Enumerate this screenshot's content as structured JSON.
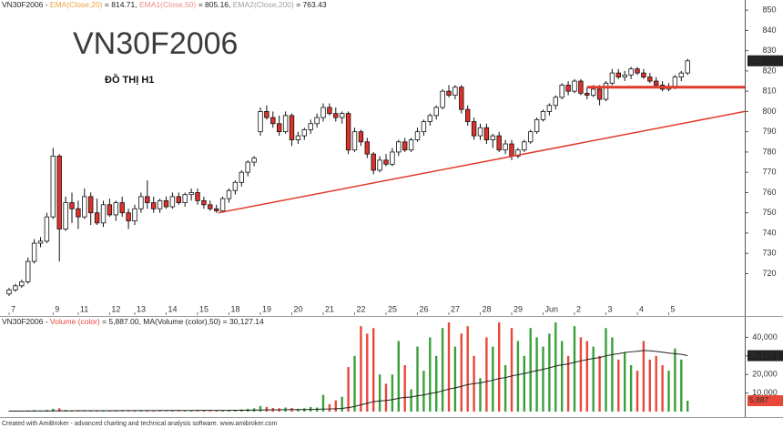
{
  "chart_data": {
    "type": "candlestick",
    "symbol_title": "VN30F2006",
    "subtitle": "ĐỒ THỊ H1",
    "footer": "Created with AmiBroker - advanced charting and technical analysis software. www.amibroker.com",
    "price_header": [
      {
        "text": "VN30F2006 - ",
        "color": "#222222"
      },
      {
        "text": "EMA(Close,20)",
        "color": "#f0a040"
      },
      {
        "text": " = 814.71, ",
        "color": "#222222"
      },
      {
        "text": "EMA1(Close,50)",
        "color": "#f08a8a"
      },
      {
        "text": " = 805.16, ",
        "color": "#222222"
      },
      {
        "text": "EMA2(Close,200)",
        "color": "#a0a0a0"
      },
      {
        "text": " = 763.43",
        "color": "#222222"
      }
    ],
    "volume_header": [
      {
        "text": "VN30F2006 - ",
        "color": "#222222"
      },
      {
        "text": "Volume (color)",
        "color": "#e8483a"
      },
      {
        "text": " = 5,887.00, ",
        "color": "#222222"
      },
      {
        "text": "MA(Volume (color),50)",
        "color": "#222222"
      },
      {
        "text": " = 30,127.14",
        "color": "#222222"
      }
    ],
    "categories": [
      "7",
      null,
      null,
      null,
      null,
      null,
      null,
      "9",
      null,
      null,
      null,
      "11",
      null,
      null,
      null,
      null,
      "12",
      null,
      null,
      null,
      "13",
      null,
      null,
      null,
      null,
      "14",
      null,
      null,
      null,
      null,
      "15",
      null,
      null,
      null,
      null,
      "18",
      null,
      null,
      null,
      null,
      "19",
      null,
      null,
      null,
      null,
      "20",
      null,
      null,
      null,
      null,
      "21",
      null,
      null,
      null,
      null,
      "22",
      null,
      null,
      null,
      null,
      "25",
      null,
      null,
      null,
      null,
      "26",
      null,
      null,
      null,
      null,
      "27",
      null,
      null,
      null,
      null,
      "28",
      null,
      null,
      null,
      null,
      "29",
      null,
      null,
      null,
      null,
      "Jun",
      null,
      null,
      null,
      null,
      "2",
      null,
      null,
      null,
      null,
      "3",
      null,
      null,
      null,
      null,
      "4",
      null,
      null,
      null,
      null,
      "5",
      null,
      null,
      null
    ],
    "ohlc": [
      [
        710,
        713,
        709,
        712
      ],
      [
        712,
        715,
        711,
        714
      ],
      [
        714,
        717,
        713,
        716
      ],
      [
        716,
        728,
        715,
        726
      ],
      [
        726,
        737,
        725,
        735
      ],
      [
        735,
        738,
        733,
        736
      ],
      [
        736,
        750,
        735,
        748
      ],
      [
        748,
        782,
        747,
        778
      ],
      [
        778,
        779,
        726,
        742
      ],
      [
        742,
        758,
        741,
        755
      ],
      [
        755,
        760,
        745,
        752
      ],
      [
        752,
        756,
        742,
        748
      ],
      [
        748,
        762,
        747,
        758
      ],
      [
        758,
        760,
        744,
        750
      ],
      [
        750,
        757,
        744,
        745
      ],
      [
        745,
        756,
        743,
        754
      ],
      [
        754,
        757,
        748,
        749
      ],
      [
        749,
        756,
        746,
        755
      ],
      [
        755,
        758,
        748,
        750
      ],
      [
        750,
        752,
        742,
        746
      ],
      [
        746,
        754,
        744,
        752
      ],
      [
        752,
        760,
        750,
        758
      ],
      [
        758,
        766,
        752,
        755
      ],
      [
        755,
        758,
        750,
        752
      ],
      [
        752,
        757,
        750,
        756
      ],
      [
        756,
        758,
        752,
        753
      ],
      [
        753,
        760,
        752,
        758
      ],
      [
        758,
        760,
        754,
        755
      ],
      [
        755,
        760,
        753,
        759
      ],
      [
        759,
        762,
        756,
        760
      ],
      [
        760,
        762,
        754,
        756
      ],
      [
        756,
        758,
        752,
        754
      ],
      [
        754,
        756,
        751,
        752
      ],
      [
        752,
        754,
        750,
        751
      ],
      [
        751,
        758,
        750,
        757
      ],
      [
        757,
        762,
        755,
        761
      ],
      [
        761,
        766,
        759,
        765
      ],
      [
        765,
        771,
        763,
        770
      ],
      [
        770,
        776,
        768,
        775
      ],
      [
        775,
        778,
        773,
        777
      ],
      [
        790,
        802,
        788,
        800
      ],
      [
        800,
        803,
        796,
        797
      ],
      [
        797,
        800,
        792,
        794
      ],
      [
        794,
        798,
        788,
        790
      ],
      [
        790,
        800,
        789,
        798
      ],
      [
        798,
        799,
        783,
        786
      ],
      [
        786,
        790,
        784,
        788
      ],
      [
        788,
        792,
        786,
        791
      ],
      [
        791,
        796,
        789,
        794
      ],
      [
        794,
        799,
        792,
        797
      ],
      [
        797,
        804,
        795,
        802
      ],
      [
        802,
        804,
        798,
        799
      ],
      [
        799,
        802,
        795,
        797
      ],
      [
        797,
        800,
        794,
        799
      ],
      [
        799,
        800,
        779,
        781
      ],
      [
        781,
        792,
        780,
        790
      ],
      [
        790,
        791,
        783,
        785
      ],
      [
        785,
        787,
        777,
        779
      ],
      [
        779,
        780,
        769,
        771
      ],
      [
        771,
        778,
        770,
        776
      ],
      [
        776,
        779,
        773,
        774
      ],
      [
        774,
        782,
        773,
        780
      ],
      [
        780,
        786,
        778,
        785
      ],
      [
        785,
        787,
        780,
        781
      ],
      [
        781,
        787,
        780,
        786
      ],
      [
        786,
        792,
        785,
        790
      ],
      [
        790,
        796,
        788,
        795
      ],
      [
        795,
        799,
        793,
        798
      ],
      [
        798,
        803,
        796,
        802
      ],
      [
        802,
        811,
        801,
        810
      ],
      [
        810,
        813,
        807,
        808
      ],
      [
        808,
        813,
        806,
        812
      ],
      [
        812,
        813,
        799,
        801
      ],
      [
        801,
        803,
        793,
        795
      ],
      [
        795,
        797,
        786,
        788
      ],
      [
        788,
        794,
        786,
        792
      ],
      [
        792,
        794,
        784,
        786
      ],
      [
        786,
        789,
        782,
        788
      ],
      [
        788,
        790,
        780,
        781
      ],
      [
        781,
        786,
        779,
        784
      ],
      [
        784,
        786,
        776,
        778
      ],
      [
        778,
        782,
        777,
        781
      ],
      [
        781,
        786,
        780,
        785
      ],
      [
        785,
        791,
        784,
        790
      ],
      [
        790,
        797,
        789,
        796
      ],
      [
        796,
        801,
        795,
        800
      ],
      [
        800,
        804,
        798,
        803
      ],
      [
        803,
        808,
        801,
        807
      ],
      [
        807,
        814,
        806,
        813
      ],
      [
        813,
        815,
        808,
        810
      ],
      [
        810,
        816,
        809,
        815
      ],
      [
        815,
        816,
        808,
        809
      ],
      [
        809,
        812,
        806,
        808
      ],
      [
        808,
        813,
        807,
        811
      ],
      [
        811,
        813,
        803,
        806
      ],
      [
        806,
        815,
        805,
        814
      ],
      [
        814,
        821,
        813,
        819
      ],
      [
        819,
        821,
        816,
        817
      ],
      [
        817,
        820,
        815,
        818
      ],
      [
        818,
        822,
        816,
        821
      ],
      [
        821,
        822,
        818,
        819
      ],
      [
        819,
        821,
        816,
        817
      ],
      [
        817,
        819,
        814,
        815
      ],
      [
        815,
        817,
        812,
        813
      ],
      [
        813,
        815,
        810,
        811
      ],
      [
        811,
        814,
        810,
        812
      ],
      [
        812,
        818,
        811,
        817
      ],
      [
        817,
        820,
        815,
        819
      ],
      [
        819,
        826,
        818,
        825
      ]
    ],
    "volume": [
      400,
      350,
      500,
      600,
      800,
      500,
      900,
      1500,
      1800,
      900,
      600,
      500,
      700,
      400,
      500,
      600,
      400,
      500,
      300,
      400,
      500,
      600,
      700,
      500,
      400,
      300,
      500,
      400,
      300,
      600,
      400,
      500,
      700,
      600,
      500,
      800,
      900,
      1200,
      1500,
      1800,
      3000,
      2500,
      2000,
      1800,
      2200,
      2000,
      1500,
      1800,
      2500,
      2200,
      9000,
      4000,
      6000,
      8000,
      24000,
      30000,
      46000,
      42000,
      45000,
      20000,
      15000,
      20000,
      38000,
      25000,
      12000,
      35000,
      22000,
      40000,
      30000,
      45000,
      48000,
      35000,
      42000,
      46000,
      30000,
      18000,
      40000,
      35000,
      48000,
      25000,
      45000,
      38000,
      30000,
      45000,
      40000,
      35000,
      42000,
      48000,
      38000,
      30000,
      46000,
      40000,
      38000,
      35000,
      30000,
      45000,
      40000,
      28000,
      32000,
      25000,
      22000,
      38000,
      28000,
      30000,
      25000,
      22000,
      34000,
      28000,
      5887
    ],
    "volume_ma": [
      300,
      310,
      320,
      330,
      350,
      360,
      380,
      400,
      430,
      440,
      450,
      460,
      470,
      480,
      490,
      500,
      510,
      520,
      530,
      540,
      550,
      560,
      570,
      580,
      590,
      600,
      610,
      620,
      630,
      640,
      650,
      660,
      670,
      680,
      690,
      700,
      720,
      740,
      760,
      790,
      850,
      900,
      940,
      980,
      1020,
      1060,
      1090,
      1120,
      1160,
      1200,
      1370,
      1440,
      1550,
      1700,
      2160,
      2750,
      3660,
      4480,
      5360,
      5740,
      6020,
      6410,
      7150,
      7630,
      7850,
      8530,
      8950,
      9740,
      10310,
      11190,
      12130,
      12800,
      13620,
      14520,
      15100,
      15430,
      16200,
      16880,
      17820,
      18290,
      19170,
      19880,
      20460,
      21330,
      22080,
      22750,
      23560,
      24500,
      25200,
      25700,
      26550,
      27300,
      28000,
      28600,
      29100,
      30000,
      30700,
      31200,
      31800,
      32200,
      32500,
      32900,
      32700,
      32400,
      32000,
      31500,
      31200,
      30800,
      30127.14
    ],
    "up_color": "#ffffff",
    "down_color": "#e0302a",
    "volume_up_color": "#3aa03a",
    "volume_down_color": "#e8483a",
    "ma_color": "#222222",
    "ylim": [
      700,
      855
    ],
    "yticks": [
      720,
      730,
      740,
      750,
      760,
      770,
      780,
      790,
      800,
      810,
      820,
      830,
      840,
      850
    ],
    "y2lim": [
      0,
      50000
    ],
    "y2ticks": [
      {
        "value": 10000,
        "label": "10,000"
      },
      {
        "value": 20000,
        "label": "20,000"
      },
      {
        "value": 30000,
        "label": "30,000"
      },
      {
        "value": 40000,
        "label": "40,000"
      }
    ],
    "last_price": 825,
    "last_volume_ma": {
      "value": 30127.14,
      "label": "30,127.1"
    },
    "last_volume": {
      "value": 5887,
      "label": "5,887"
    },
    "trendlines": [
      {
        "color": "#e03a2a",
        "x": [
          33.3,
          117.1
        ],
        "y": [
          750,
          800
        ]
      },
      {
        "color": "#e03a2a",
        "x": [
          92,
          117.1
        ],
        "y": [
          812,
          812
        ]
      }
    ],
    "grid": false
  }
}
